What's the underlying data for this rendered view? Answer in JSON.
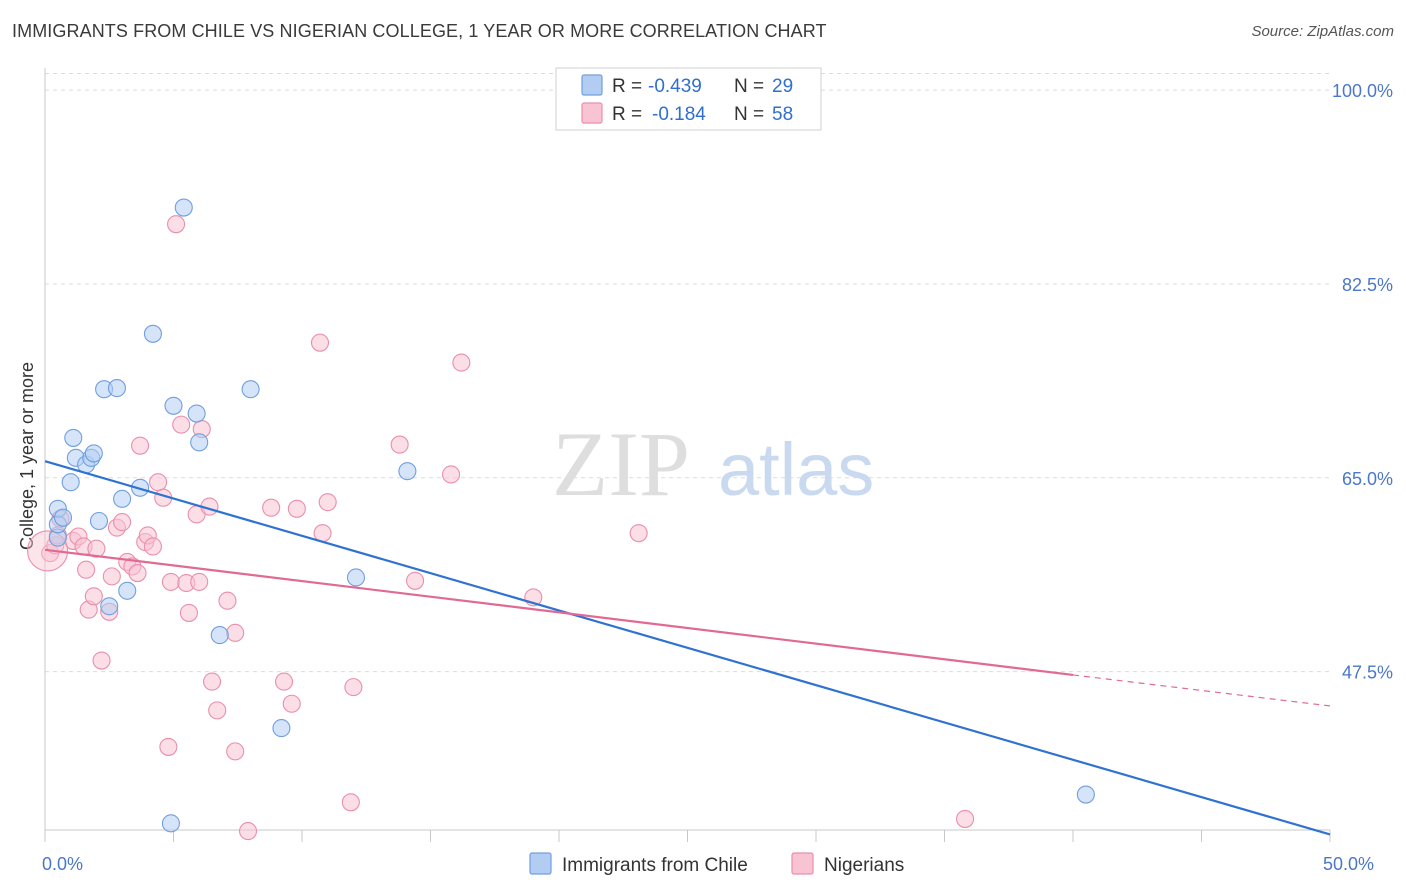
{
  "title": "IMMIGRANTS FROM CHILE VS NIGERIAN COLLEGE, 1 YEAR OR MORE CORRELATION CHART",
  "source": "Source: ZipAtlas.com",
  "watermark": {
    "zip": "ZIP",
    "atlas": "atlas"
  },
  "colors": {
    "blue_fill": "#b3cdf2",
    "blue_stroke": "#6f9fe0",
    "blue_line": "#2f72d0",
    "pink_fill": "#f8c3d2",
    "pink_stroke": "#ea8fab",
    "pink_line": "#e06a93",
    "grid": "#dcdcdc",
    "tick": "#4a78c8"
  },
  "legend": {
    "rows": [
      {
        "r_label": "R = ",
        "r_value": "-0.439",
        "n_label": "N = ",
        "n_value": "29"
      },
      {
        "r_label": "R = ",
        "r_value": "-0.184",
        "n_label": "N = ",
        "n_value": "58"
      }
    ]
  },
  "chart_data": {
    "type": "scatter",
    "title": "IMMIGRANTS FROM CHILE VS NIGERIAN COLLEGE, 1 YEAR OR MORE CORRELATION CHART",
    "xlabel": "",
    "ylabel": "College, 1 year or more",
    "xlim": [
      0,
      50
    ],
    "ylim": [
      33.2,
      102
    ],
    "x_tick_labels": [
      "0.0%",
      "50.0%"
    ],
    "y_ticks": [
      47.5,
      65.0,
      82.5,
      100.0
    ],
    "y_tick_labels": [
      "47.5%",
      "65.0%",
      "82.5%",
      "100.0%"
    ],
    "grid": true,
    "legend_position": "top-center",
    "series": [
      {
        "name": "Immigrants from Chile",
        "color": "blue",
        "points": [
          [
            0.5,
            59.6
          ],
          [
            0.5,
            60.8
          ],
          [
            0.5,
            62.2
          ],
          [
            0.7,
            61.4
          ],
          [
            1.0,
            64.6
          ],
          [
            1.1,
            68.6
          ],
          [
            1.2,
            66.8
          ],
          [
            1.6,
            66.2
          ],
          [
            1.8,
            66.8
          ],
          [
            1.9,
            67.2
          ],
          [
            2.1,
            61.1
          ],
          [
            2.3,
            73.0
          ],
          [
            2.8,
            73.1
          ],
          [
            2.5,
            53.4
          ],
          [
            3.0,
            63.1
          ],
          [
            3.2,
            54.8
          ],
          [
            3.7,
            64.1
          ],
          [
            4.2,
            78.0
          ],
          [
            4.9,
            33.8
          ],
          [
            5.0,
            71.5
          ],
          [
            5.4,
            89.4
          ],
          [
            5.9,
            70.8
          ],
          [
            6.0,
            68.2
          ],
          [
            6.8,
            50.8
          ],
          [
            8.0,
            73.0
          ],
          [
            9.2,
            42.4
          ],
          [
            12.1,
            56.0
          ],
          [
            14.1,
            65.6
          ],
          [
            40.5,
            36.4
          ]
        ],
        "trend": {
          "x": [
            0.0,
            50.0
          ],
          "y": [
            66.5,
            32.8
          ]
        }
      },
      {
        "name": "Nigerians",
        "color": "pink",
        "points": [
          [
            0.2,
            58.2
          ],
          [
            0.4,
            58.9
          ],
          [
            0.5,
            59.8
          ],
          [
            0.6,
            61.3
          ],
          [
            1.1,
            59.3
          ],
          [
            1.3,
            59.7
          ],
          [
            1.5,
            58.8
          ],
          [
            1.6,
            56.7
          ],
          [
            1.7,
            53.1
          ],
          [
            1.9,
            54.3
          ],
          [
            2.0,
            58.6
          ],
          [
            2.2,
            48.5
          ],
          [
            2.5,
            52.9
          ],
          [
            2.6,
            56.1
          ],
          [
            2.8,
            60.5
          ],
          [
            3.0,
            61.0
          ],
          [
            3.2,
            57.4
          ],
          [
            3.4,
            57.0
          ],
          [
            3.6,
            56.4
          ],
          [
            3.7,
            67.9
          ],
          [
            3.9,
            59.2
          ],
          [
            4.0,
            59.8
          ],
          [
            4.2,
            58.8
          ],
          [
            4.4,
            64.6
          ],
          [
            4.6,
            63.2
          ],
          [
            4.8,
            40.7
          ],
          [
            4.9,
            55.6
          ],
          [
            5.1,
            87.9
          ],
          [
            5.3,
            69.8
          ],
          [
            5.5,
            55.5
          ],
          [
            5.6,
            52.8
          ],
          [
            5.9,
            61.7
          ],
          [
            6.0,
            55.6
          ],
          [
            6.1,
            69.4
          ],
          [
            6.4,
            62.4
          ],
          [
            6.5,
            46.6
          ],
          [
            6.7,
            44.0
          ],
          [
            7.1,
            53.9
          ],
          [
            7.4,
            51.0
          ],
          [
            7.4,
            40.3
          ],
          [
            7.9,
            33.1
          ],
          [
            8.8,
            62.3
          ],
          [
            9.3,
            46.6
          ],
          [
            9.6,
            44.6
          ],
          [
            9.8,
            62.2
          ],
          [
            10.7,
            77.2
          ],
          [
            10.8,
            60.0
          ],
          [
            11.0,
            62.8
          ],
          [
            11.9,
            35.7
          ],
          [
            12.0,
            46.1
          ],
          [
            13.8,
            68.0
          ],
          [
            14.4,
            55.7
          ],
          [
            15.8,
            65.3
          ],
          [
            16.2,
            75.4
          ],
          [
            19.0,
            54.2
          ],
          [
            23.1,
            60.0
          ],
          [
            35.8,
            34.2
          ],
          [
            0.1,
            58.4
          ]
        ],
        "trend": {
          "x": [
            0.0,
            40.0
          ],
          "y": [
            58.5,
            47.2
          ]
        },
        "trend_dashed": {
          "x": [
            40.0,
            50.0
          ],
          "y": [
            47.2,
            44.4
          ]
        }
      }
    ]
  }
}
